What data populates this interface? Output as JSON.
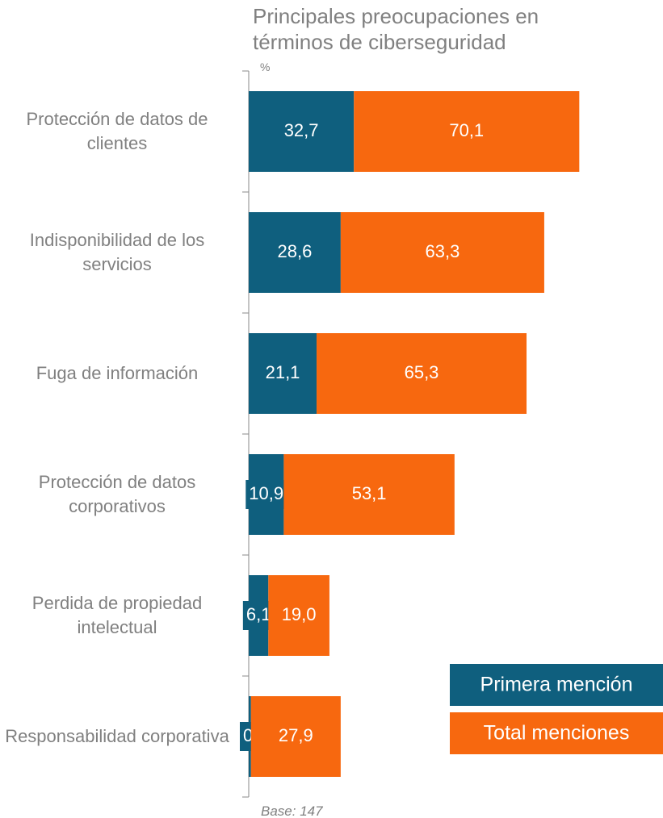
{
  "chart_data": {
    "type": "bar",
    "orientation": "horizontal",
    "stacked": true,
    "title": "Principales preocupaciones en términos de ciberseguridad",
    "subtitle": "%",
    "note": "Base: 147",
    "categories": [
      "Protección de datos de clientes",
      "Indisponibilidad de los servicios",
      "Fuga de información",
      "Protección de datos corporativos",
      "Perdida de propiedad intelectual",
      "Responsabilidad corporativa"
    ],
    "series": [
      {
        "name": "Primera mención",
        "color": "#0f5f7e",
        "values": [
          32.7,
          28.6,
          21.1,
          10.9,
          6.1,
          0.7
        ],
        "value_labels": [
          "32,7",
          "28,6",
          "21,1",
          "10,9",
          "6,1",
          "0,7"
        ]
      },
      {
        "name": "Total menciones",
        "color": "#f7680f",
        "values": [
          70.1,
          63.3,
          65.3,
          53.1,
          19.0,
          27.9
        ],
        "value_labels": [
          "70,1",
          "63,3",
          "65,3",
          "53,1",
          "19,0",
          "27,9"
        ]
      }
    ],
    "xlim": [
      0,
      110
    ],
    "legend": "lower right"
  }
}
